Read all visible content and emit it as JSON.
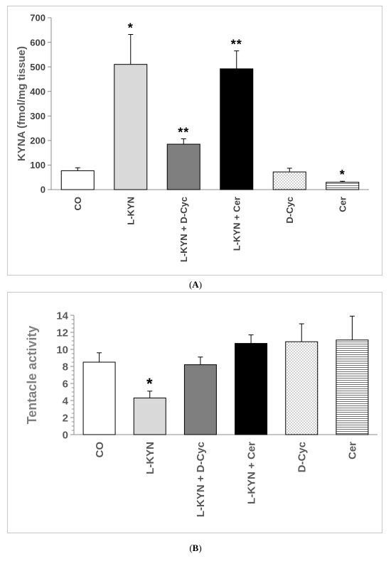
{
  "captions": {
    "a_open": "(",
    "a_letter": "A",
    "a_close": ")",
    "b_open": "(",
    "b_letter": "B",
    "b_close": ")"
  },
  "chart_data": [
    {
      "type": "bar",
      "ylabel": "KYNA (fmol/mg tissue)",
      "xlabel": "",
      "categories": [
        "CO",
        "L-KYN",
        "L-KYN + D-Cyc",
        "L-KYN + Cer",
        "D-Cyc",
        "Cer"
      ],
      "values": [
        77,
        510,
        185,
        492,
        72,
        30
      ],
      "errors": [
        12,
        122,
        22,
        73,
        15,
        4
      ],
      "significance": [
        "",
        "*",
        "**",
        "**",
        "",
        "*"
      ],
      "fills": [
        "white",
        "light-gray",
        "dark-gray",
        "black",
        "dotted",
        "horizontal-stripes"
      ],
      "ylim": [
        0,
        700
      ],
      "yticks": [
        0,
        100,
        200,
        300,
        400,
        500,
        600,
        700
      ]
    },
    {
      "type": "bar",
      "ylabel": "Tentacle activity",
      "xlabel": "",
      "categories": [
        "CO",
        "L-KYN",
        "L-KYN + D-Cyc",
        "L-KYN + Cer",
        "D-Cyc",
        "Cer"
      ],
      "values": [
        8.5,
        4.3,
        8.2,
        10.7,
        10.9,
        11.1
      ],
      "errors": [
        1.1,
        0.8,
        0.9,
        1.0,
        2.1,
        2.8
      ],
      "significance": [
        "",
        "*",
        "",
        "",
        "",
        ""
      ],
      "fills": [
        "white",
        "light-gray",
        "dark-gray",
        "black",
        "dotted",
        "horizontal-stripes"
      ],
      "ylim": [
        0,
        14
      ],
      "yticks": [
        0,
        2,
        4,
        6,
        8,
        10,
        12,
        14
      ]
    }
  ]
}
